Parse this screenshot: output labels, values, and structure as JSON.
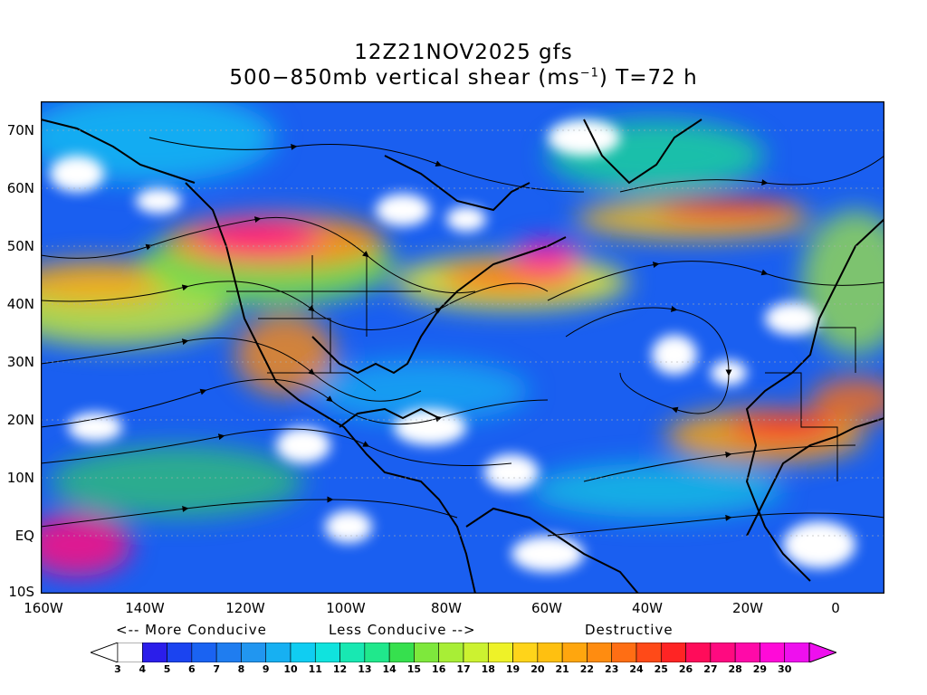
{
  "title": {
    "line1": "12Z21NOV2025 gfs",
    "line2_prefix": "500−850mb vertical shear (ms",
    "line2_sup": "−1",
    "line2_suffix": ") T=72 h"
  },
  "map": {
    "lat_labels": [
      "70N",
      "60N",
      "50N",
      "40N",
      "30N",
      "20N",
      "10N",
      "EQ",
      "10S"
    ],
    "lon_labels": [
      "160W",
      "140W",
      "120W",
      "100W",
      "80W",
      "60W",
      "40W",
      "20W",
      "0"
    ],
    "colors": {
      "coast": "#000000",
      "streamline": "#000000",
      "no_shear": "#ffffff"
    }
  },
  "legend": {
    "more_conducive": "<-- More Conducive",
    "less_conducive": "Less Conducive -->",
    "destructive": "Destructive",
    "scale_labels": [
      "3",
      "4",
      "5",
      "6",
      "7",
      "8",
      "9",
      "10",
      "11",
      "12",
      "13",
      "14",
      "15",
      "16",
      "17",
      "18",
      "19",
      "20",
      "21",
      "22",
      "23",
      "24",
      "25",
      "26",
      "27",
      "28",
      "29",
      "30"
    ],
    "scale_colors": [
      "#ffffff",
      "#2b1eea",
      "#1b44f0",
      "#1a63f2",
      "#1f7df0",
      "#2196f0",
      "#17b0f2",
      "#10cdf2",
      "#10e3de",
      "#18e8b2",
      "#20e88c",
      "#36e04e",
      "#7ee83c",
      "#a8ee36",
      "#ccf230",
      "#eef228",
      "#ffd41a",
      "#ffc010",
      "#ffa60e",
      "#ff8c10",
      "#ff6e14",
      "#ff4a18",
      "#ff2424",
      "#ff0c5a",
      "#ff0a80",
      "#ff0aa8",
      "#ff0ad8",
      "#ee10ee"
    ]
  }
}
